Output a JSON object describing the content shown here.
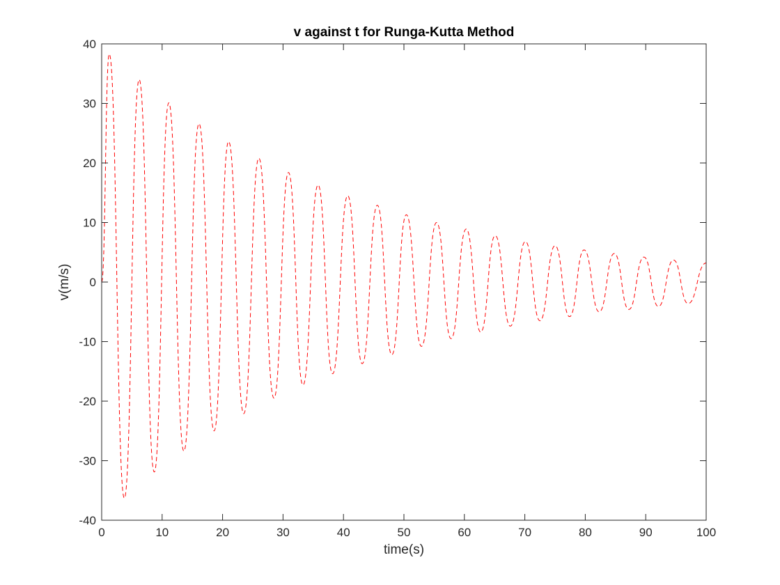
{
  "chart_data": {
    "type": "line",
    "title": "v against t for Runga-Kutta Method",
    "xlabel": "time(s)",
    "ylabel": "v(m/s)",
    "xlim": [
      0,
      100
    ],
    "ylim": [
      -40,
      40
    ],
    "x_ticks": [
      "0",
      "10",
      "20",
      "30",
      "40",
      "50",
      "60",
      "70",
      "80",
      "90",
      "100"
    ],
    "y_ticks": [
      "40",
      "30",
      "20",
      "10",
      "0",
      "-10",
      "-20",
      "-30",
      "-40"
    ],
    "grid": false,
    "legend": "none",
    "series": [
      {
        "line_style": "dashed",
        "color": "#ff0000",
        "x": [
          0,
          1.25,
          3.75,
          6.2,
          8.7,
          11.1,
          13.6,
          16.1,
          18.6,
          21.0,
          23.5,
          26.0,
          28.5,
          30.9,
          33.3,
          35.8,
          38.2,
          40.7,
          43.1,
          45.6,
          48.0,
          50.4,
          52.9,
          55.4,
          57.8,
          60.3,
          62.7,
          65.1,
          67.6,
          70.1,
          72.5,
          75.0,
          77.4,
          79.8,
          82.3,
          84.8,
          87.2,
          89.7,
          92.1,
          94.6,
          97.0,
          100.0
        ],
        "y": [
          0,
          38.3,
          -36.3,
          34.0,
          -31.9,
          30.1,
          -28.4,
          26.6,
          -25.0,
          23.6,
          -22.1,
          20.8,
          -19.5,
          18.4,
          -17.3,
          16.3,
          -15.4,
          14.5,
          -13.7,
          12.9,
          -12.2,
          11.3,
          -10.8,
          10.0,
          -9.5,
          8.9,
          -8.4,
          7.8,
          -7.4,
          6.8,
          -6.5,
          6.1,
          -5.8,
          5.4,
          -5.0,
          4.8,
          -4.6,
          4.2,
          -4.1,
          3.7,
          -3.6,
          3.2
        ]
      }
    ]
  }
}
